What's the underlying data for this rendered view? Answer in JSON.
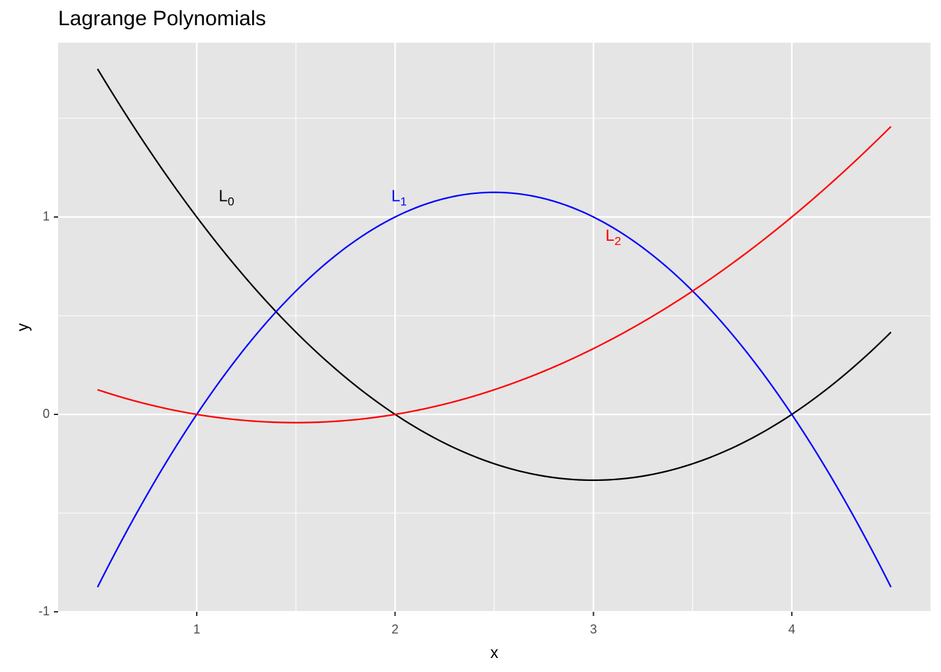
{
  "chart_data": {
    "type": "line",
    "title": "Lagrange Polynomials",
    "xlabel": "x",
    "ylabel": "y",
    "xlim": [
      0.3,
      4.6
    ],
    "ylim": [
      -1,
      1.8
    ],
    "x_ticks": [
      1,
      2,
      3,
      4
    ],
    "y_ticks": [
      -1,
      0,
      1
    ],
    "x_minor": [
      1.5,
      2.5,
      3.5
    ],
    "y_minor": [
      -0.5,
      0.5,
      1.5
    ],
    "grid": true,
    "legend": "none",
    "background": "#e5e5e5",
    "nodes": [
      1,
      2,
      4
    ],
    "x_range": [
      0.5,
      4.5
    ],
    "series": [
      {
        "label_main": "L",
        "label_sub": "0",
        "color": "#000000",
        "label_x": 1.15,
        "label_y": 1.08,
        "x": [
          0.5,
          0.75,
          1,
          1.25,
          1.5,
          1.75,
          2,
          2.25,
          2.5,
          2.75,
          3,
          3.25,
          3.5,
          3.75,
          4,
          4.25,
          4.5
        ],
        "y": [
          1.75,
          1.354,
          1,
          0.688,
          0.417,
          0.188,
          0,
          -0.146,
          -0.25,
          -0.313,
          -0.333,
          -0.313,
          -0.25,
          -0.146,
          0,
          0.188,
          0.417
        ]
      },
      {
        "label_main": "L",
        "label_sub": "1",
        "color": "#0000ff",
        "label_x": 2.02,
        "label_y": 1.08,
        "x": [
          0.5,
          0.75,
          1,
          1.25,
          1.5,
          1.75,
          2,
          2.25,
          2.5,
          2.75,
          3,
          3.25,
          3.5,
          3.75,
          4,
          4.25,
          4.5
        ],
        "y": [
          -0.875,
          -0.406,
          0,
          0.344,
          0.625,
          0.844,
          1,
          1.094,
          1.125,
          1.094,
          1,
          0.844,
          0.625,
          0.344,
          0,
          -0.406,
          -0.875
        ]
      },
      {
        "label_main": "L",
        "label_sub": "2",
        "color": "#ff0000",
        "label_x": 3.1,
        "label_y": 0.88,
        "x": [
          0.5,
          0.75,
          1,
          1.25,
          1.5,
          1.75,
          2,
          2.25,
          2.5,
          2.75,
          3,
          3.25,
          3.5,
          3.75,
          4,
          4.25,
          4.5
        ],
        "y": [
          0.125,
          0.052,
          0,
          -0.031,
          -0.042,
          -0.031,
          0,
          0.052,
          0.125,
          0.219,
          0.333,
          0.469,
          0.625,
          0.802,
          1,
          1.219,
          1.458
        ]
      }
    ]
  }
}
